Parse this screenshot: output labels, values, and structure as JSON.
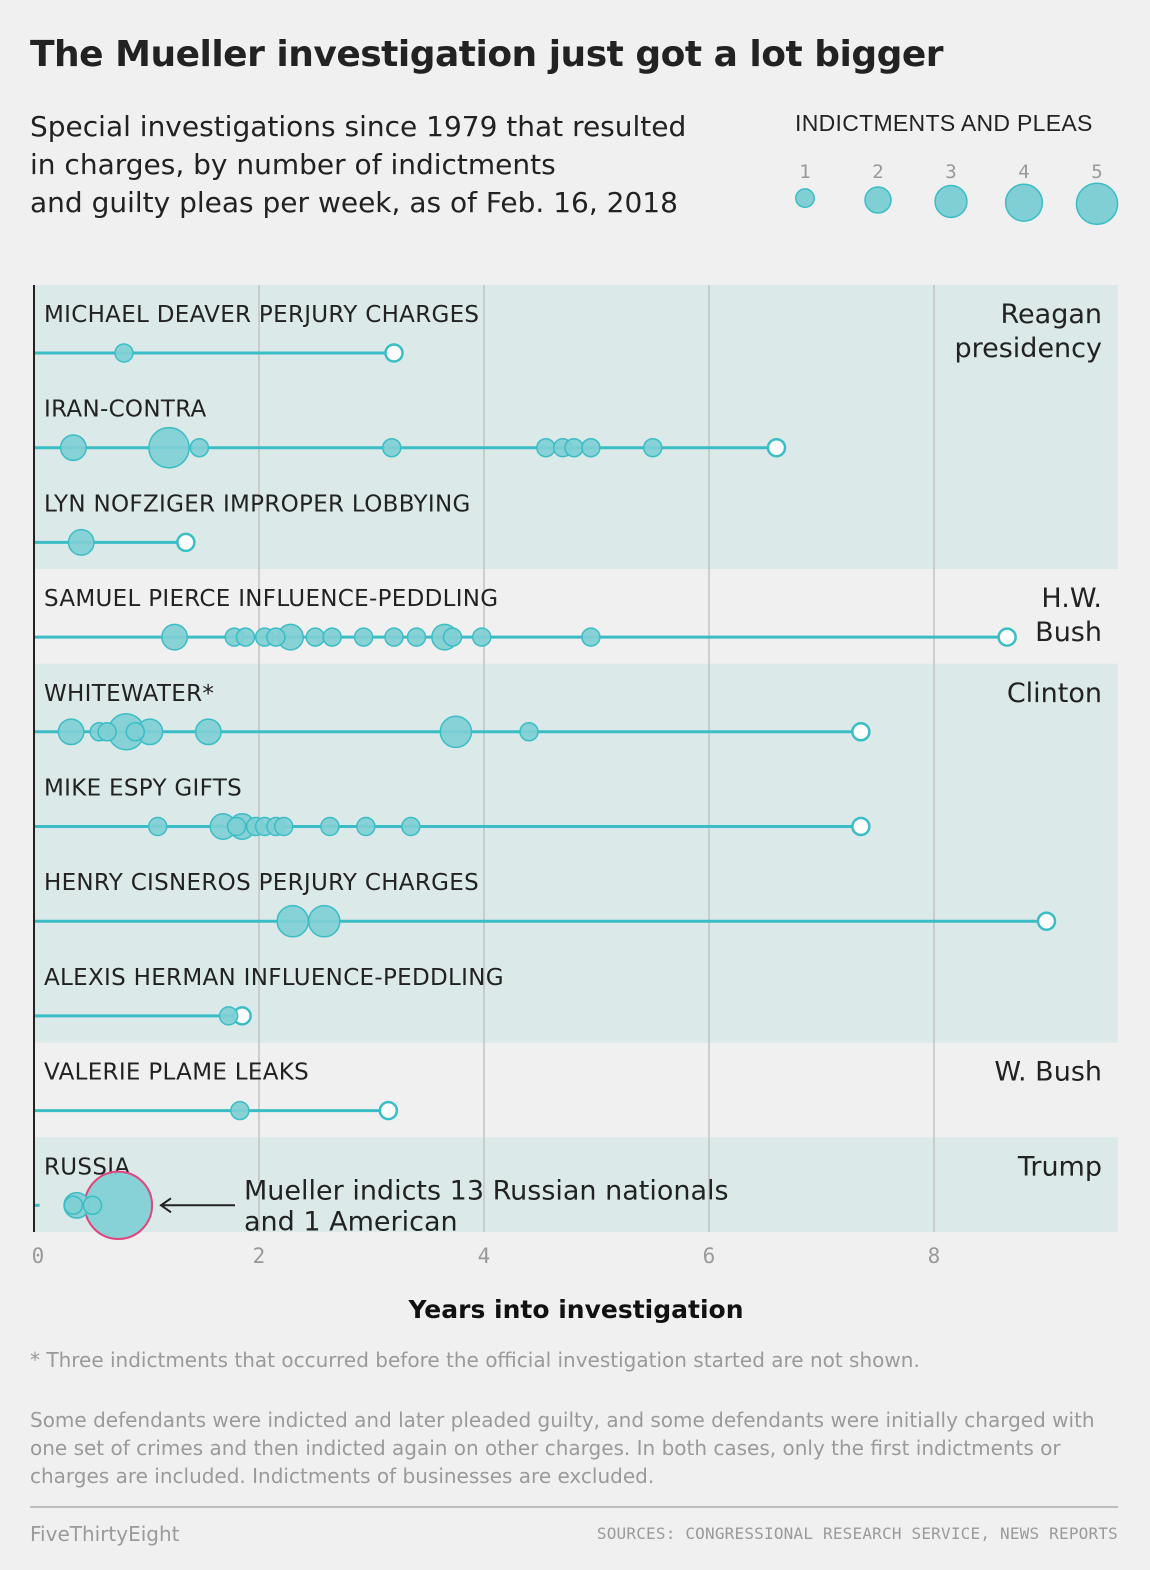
{
  "header": {
    "title": "The Mueller investigation just got a lot bigger",
    "subtitle_lines": [
      "Special investigations since 1979 that resulted",
      "in charges, by number of indictments",
      "and guilty pleas per week, as of Feb. 16, 2018"
    ]
  },
  "legend": {
    "title": "INDICTMENTS AND PLEAS",
    "sizes": [
      1,
      2,
      3,
      4,
      5
    ],
    "size_labels": [
      "1",
      "2",
      "3",
      "4",
      "5"
    ]
  },
  "colors": {
    "dot": "#7fcfd4",
    "dot_stroke": "#3bbdc6",
    "line": "#3bbdc6",
    "band_dark": "#dbe9e9",
    "band_light": "#f0f0f0",
    "highlight": "#e0457e",
    "grid": "#c2c2c2"
  },
  "chart_data": {
    "type": "scatter",
    "xlabel": "Years into investigation",
    "xlim": [
      0,
      9.5
    ],
    "x_ticks": [
      0,
      2,
      4,
      6,
      8
    ],
    "x_tick_labels": [
      "0",
      "2",
      "4",
      "6",
      "8"
    ],
    "bands": [
      {
        "label_lines": [
          "Reagan",
          "presidency"
        ],
        "rows": [
          0,
          1,
          2
        ],
        "shade": "dark"
      },
      {
        "label_lines": [
          "H.W.",
          "Bush"
        ],
        "rows": [
          3
        ],
        "shade": "light"
      },
      {
        "label_lines": [
          "Clinton"
        ],
        "rows": [
          4,
          5,
          6,
          7
        ],
        "shade": "dark"
      },
      {
        "label_lines": [
          "W. Bush"
        ],
        "rows": [
          8
        ],
        "shade": "light"
      },
      {
        "label_lines": [
          "Trump"
        ],
        "rows": [
          9
        ],
        "shade": "dark"
      }
    ],
    "series": [
      {
        "name": "MICHAEL DEAVER PERJURY CHARGES",
        "end": 3.2,
        "events": [
          [
            0.8,
            1
          ]
        ]
      },
      {
        "name": "IRAN-CONTRA",
        "end": 6.6,
        "events": [
          [
            0.35,
            2
          ],
          [
            1.2,
            5
          ],
          [
            1.47,
            1
          ],
          [
            3.18,
            1
          ],
          [
            4.55,
            1
          ],
          [
            4.7,
            1
          ],
          [
            4.8,
            1
          ],
          [
            4.95,
            1
          ],
          [
            5.5,
            1
          ]
        ]
      },
      {
        "name": "LYN NOFZIGER IMPROPER LOBBYING",
        "end": 1.35,
        "events": [
          [
            0.42,
            2
          ]
        ]
      },
      {
        "name": "SAMUEL PIERCE INFLUENCE-PEDDLING",
        "end": 8.65,
        "events": [
          [
            1.25,
            2
          ],
          [
            1.78,
            1
          ],
          [
            1.88,
            1
          ],
          [
            2.05,
            1
          ],
          [
            2.15,
            1
          ],
          [
            2.28,
            2
          ],
          [
            2.5,
            1
          ],
          [
            2.65,
            1
          ],
          [
            2.93,
            1
          ],
          [
            3.2,
            1
          ],
          [
            3.4,
            1
          ],
          [
            3.65,
            2
          ],
          [
            3.72,
            1
          ],
          [
            3.98,
            1
          ],
          [
            4.95,
            1
          ]
        ]
      },
      {
        "name": "WHITEWATER*",
        "end": 7.35,
        "events": [
          [
            0.33,
            2
          ],
          [
            0.58,
            1
          ],
          [
            0.65,
            1
          ],
          [
            0.9,
            1
          ],
          [
            0.82,
            4
          ],
          [
            1.03,
            2
          ],
          [
            1.55,
            2
          ],
          [
            3.75,
            3
          ],
          [
            4.4,
            1
          ]
        ]
      },
      {
        "name": "MIKE ESPY GIFTS",
        "end": 7.35,
        "events": [
          [
            1.1,
            1
          ],
          [
            1.68,
            2
          ],
          [
            1.8,
            1
          ],
          [
            1.85,
            2
          ],
          [
            1.97,
            1
          ],
          [
            2.05,
            1
          ],
          [
            2.15,
            1
          ],
          [
            2.22,
            1
          ],
          [
            2.63,
            1
          ],
          [
            2.95,
            1
          ],
          [
            3.35,
            1
          ]
        ]
      },
      {
        "name": "HENRY CISNEROS PERJURY CHARGES",
        "end": 9.0,
        "events": [
          [
            2.3,
            3
          ],
          [
            2.58,
            3
          ]
        ]
      },
      {
        "name": "ALEXIS HERMAN INFLUENCE-PEDDLING",
        "end": 1.85,
        "events": [
          [
            1.73,
            1
          ]
        ]
      },
      {
        "name": "VALERIE PLAME LEAKS",
        "end": 3.15,
        "events": [
          [
            1.83,
            1
          ]
        ]
      },
      {
        "name": "RUSSIA",
        "end": 0.05,
        "events": [
          [
            0.38,
            2
          ],
          [
            0.35,
            1
          ],
          [
            0.52,
            1
          ],
          [
            0.75,
            14
          ]
        ]
      }
    ],
    "annotation": {
      "lines": [
        "Mueller indicts 13 Russian nationals",
        "and 1 American"
      ],
      "row": 9,
      "x": 0.75
    }
  },
  "footer": {
    "footnote": "* Three indictments that occurred before the official investigation started are not shown.",
    "note": "Some defendants were indicted and later pleaded guilty, and some defendants were initially charged with one set of crimes and then indicted again on other charges. In both cases, only the first indictments or charges are included. Indictments of businesses are excluded.",
    "brand": "FiveThirtyEight",
    "sources": "SOURCES: CONGRESSIONAL RESEARCH SERVICE, NEWS REPORTS"
  }
}
